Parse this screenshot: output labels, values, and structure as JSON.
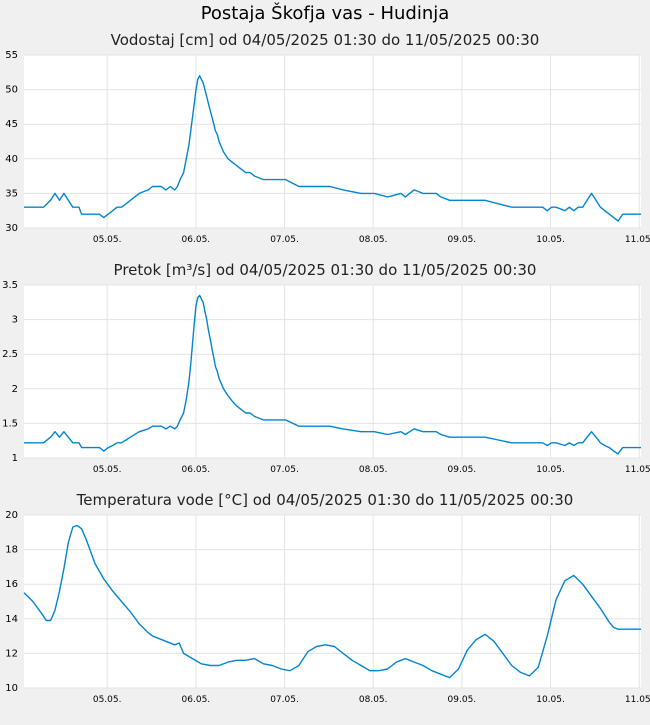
{
  "station_title": "Postaja Škofja vas - Hudinja",
  "line_color": "#0085d0",
  "chart_data": [
    {
      "type": "line",
      "title": "Vodostaj [cm] od 04/05/2025 01:30 do 11/05/2025 00:30",
      "x_range": [
        0,
        6.958
      ],
      "ylim": [
        30,
        55
      ],
      "yticks": [
        30,
        35,
        40,
        45,
        50,
        55
      ],
      "ytick_labels": [
        "30",
        "35",
        "40",
        "45",
        "50",
        "55"
      ],
      "xticks": [
        0.938,
        1.938,
        2.938,
        3.938,
        4.938,
        5.938,
        6.938
      ],
      "xtick_labels": [
        "05.05.",
        "06.05.",
        "07.05.",
        "08.05.",
        "09.05.",
        "10.05.",
        "11.05."
      ],
      "grid": true,
      "x": [
        0.0,
        0.22,
        0.3,
        0.35,
        0.4,
        0.45,
        0.5,
        0.55,
        0.62,
        0.65,
        0.7,
        0.85,
        0.9,
        0.95,
        1.0,
        1.05,
        1.1,
        1.15,
        1.2,
        1.3,
        1.4,
        1.45,
        1.5,
        1.55,
        1.6,
        1.65,
        1.7,
        1.73,
        1.76,
        1.8,
        1.83,
        1.86,
        1.88,
        1.9,
        1.92,
        1.94,
        1.96,
        1.98,
        2.0,
        2.02,
        2.04,
        2.06,
        2.08,
        2.1,
        2.12,
        2.14,
        2.16,
        2.18,
        2.2,
        2.25,
        2.3,
        2.35,
        2.4,
        2.45,
        2.5,
        2.55,
        2.6,
        2.7,
        2.8,
        2.95,
        3.1,
        3.25,
        3.45,
        3.6,
        3.8,
        3.95,
        4.1,
        4.25,
        4.3,
        4.35,
        4.4,
        4.5,
        4.6,
        4.65,
        4.7,
        4.8,
        5.0,
        5.1,
        5.2,
        5.35,
        5.5,
        5.6,
        5.7,
        5.75,
        5.8,
        5.85,
        5.9,
        5.95,
        6.0,
        6.1,
        6.15,
        6.2,
        6.25,
        6.3,
        6.35,
        6.4,
        6.45,
        6.5,
        6.55,
        6.6,
        6.65,
        6.7,
        6.75,
        6.8,
        6.85,
        6.9,
        6.958
      ],
      "y": [
        33,
        33,
        34,
        35,
        34,
        35,
        34,
        33,
        33,
        32,
        32,
        32,
        31.5,
        32,
        32.5,
        33,
        33,
        33.5,
        34,
        35,
        35.5,
        36,
        36,
        36,
        35.5,
        36,
        35.5,
        36,
        37,
        38,
        40,
        42,
        44,
        46,
        48,
        50,
        51.5,
        52,
        51.5,
        51,
        50,
        49,
        48,
        47,
        46,
        45,
        44,
        43.5,
        42.5,
        41,
        40,
        39.5,
        39,
        38.5,
        38,
        38,
        37.5,
        37,
        37,
        37,
        36,
        36,
        36,
        35.5,
        35,
        35,
        34.5,
        35,
        34.5,
        35,
        35.5,
        35,
        35,
        35,
        34.5,
        34,
        34,
        34,
        34,
        33.5,
        33,
        33,
        33,
        33,
        33,
        33,
        32.5,
        33,
        33,
        32.5,
        33,
        32.5,
        33,
        33,
        34,
        35,
        34,
        33,
        32.5,
        32,
        31.5,
        31,
        32,
        32,
        32,
        32,
        32
      ]
    },
    {
      "type": "line",
      "title": "Pretok [m³/s] od 04/05/2025 01:30 do 11/05/2025 00:30",
      "x_range": [
        0,
        6.958
      ],
      "ylim": [
        1,
        3.5
      ],
      "yticks": [
        1,
        1.5,
        2,
        2.5,
        3,
        3.5
      ],
      "ytick_labels": [
        "1",
        "1.5",
        "2",
        "2.5",
        "3",
        "3.5"
      ],
      "xticks": [
        0.938,
        1.938,
        2.938,
        3.938,
        4.938,
        5.938,
        6.938
      ],
      "xtick_labels": [
        "05.05.",
        "06.05.",
        "07.05.",
        "08.05.",
        "09.05.",
        "10.05.",
        "11.05."
      ],
      "grid": true,
      "x": [
        0.0,
        0.22,
        0.3,
        0.35,
        0.4,
        0.45,
        0.5,
        0.55,
        0.62,
        0.65,
        0.7,
        0.85,
        0.9,
        0.95,
        1.0,
        1.05,
        1.1,
        1.15,
        1.2,
        1.3,
        1.4,
        1.45,
        1.5,
        1.55,
        1.6,
        1.65,
        1.7,
        1.73,
        1.76,
        1.8,
        1.83,
        1.86,
        1.88,
        1.9,
        1.92,
        1.94,
        1.96,
        1.98,
        2.0,
        2.02,
        2.04,
        2.06,
        2.08,
        2.1,
        2.12,
        2.14,
        2.16,
        2.18,
        2.2,
        2.25,
        2.3,
        2.35,
        2.4,
        2.45,
        2.5,
        2.55,
        2.6,
        2.7,
        2.8,
        2.95,
        3.1,
        3.25,
        3.45,
        3.6,
        3.8,
        3.95,
        4.1,
        4.25,
        4.3,
        4.35,
        4.4,
        4.5,
        4.6,
        4.65,
        4.7,
        4.8,
        5.0,
        5.1,
        5.2,
        5.35,
        5.5,
        5.6,
        5.7,
        5.75,
        5.8,
        5.85,
        5.9,
        5.95,
        6.0,
        6.1,
        6.15,
        6.2,
        6.25,
        6.3,
        6.35,
        6.4,
        6.45,
        6.5,
        6.55,
        6.6,
        6.65,
        6.7,
        6.75,
        6.8,
        6.85,
        6.9,
        6.958
      ],
      "y": [
        1.22,
        1.22,
        1.3,
        1.38,
        1.3,
        1.38,
        1.3,
        1.22,
        1.22,
        1.15,
        1.15,
        1.15,
        1.1,
        1.15,
        1.18,
        1.22,
        1.22,
        1.26,
        1.3,
        1.38,
        1.42,
        1.46,
        1.46,
        1.46,
        1.42,
        1.46,
        1.42,
        1.46,
        1.55,
        1.65,
        1.85,
        2.1,
        2.35,
        2.65,
        2.95,
        3.2,
        3.32,
        3.35,
        3.3,
        3.25,
        3.12,
        3.0,
        2.85,
        2.72,
        2.58,
        2.45,
        2.32,
        2.25,
        2.15,
        2.0,
        1.9,
        1.82,
        1.75,
        1.7,
        1.65,
        1.65,
        1.6,
        1.55,
        1.55,
        1.55,
        1.46,
        1.46,
        1.46,
        1.42,
        1.38,
        1.38,
        1.34,
        1.38,
        1.34,
        1.38,
        1.42,
        1.38,
        1.38,
        1.38,
        1.34,
        1.3,
        1.3,
        1.3,
        1.3,
        1.26,
        1.22,
        1.22,
        1.22,
        1.22,
        1.22,
        1.22,
        1.18,
        1.22,
        1.22,
        1.18,
        1.22,
        1.18,
        1.22,
        1.22,
        1.3,
        1.38,
        1.3,
        1.22,
        1.18,
        1.15,
        1.1,
        1.06,
        1.15,
        1.15,
        1.15,
        1.15,
        1.15
      ]
    },
    {
      "type": "line",
      "title": "Temperatura vode [°C] od 04/05/2025 01:30 do 11/05/2025 00:30",
      "x_range": [
        0,
        6.958
      ],
      "ylim": [
        10,
        20
      ],
      "yticks": [
        10,
        12,
        14,
        16,
        18,
        20
      ],
      "ytick_labels": [
        "10",
        "12",
        "14",
        "16",
        "18",
        "20"
      ],
      "xticks": [
        0.938,
        1.938,
        2.938,
        3.938,
        4.938,
        5.938,
        6.938
      ],
      "xtick_labels": [
        "05.05.",
        "06.05.",
        "07.05.",
        "08.05.",
        "09.05.",
        "10.05.",
        "11.05."
      ],
      "grid": true,
      "x": [
        0.0,
        0.1,
        0.2,
        0.25,
        0.3,
        0.35,
        0.4,
        0.45,
        0.5,
        0.55,
        0.6,
        0.65,
        0.7,
        0.75,
        0.8,
        0.9,
        1.0,
        1.1,
        1.2,
        1.3,
        1.4,
        1.45,
        1.5,
        1.6,
        1.7,
        1.75,
        1.8,
        1.9,
        2.0,
        2.1,
        2.2,
        2.3,
        2.4,
        2.5,
        2.6,
        2.7,
        2.8,
        2.9,
        3.0,
        3.1,
        3.2,
        3.3,
        3.4,
        3.5,
        3.6,
        3.7,
        3.8,
        3.9,
        4.0,
        4.1,
        4.2,
        4.25,
        4.3,
        4.35,
        4.4,
        4.5,
        4.6,
        4.7,
        4.8,
        4.9,
        5.0,
        5.1,
        5.2,
        5.3,
        5.4,
        5.5,
        5.6,
        5.7,
        5.8,
        5.9,
        6.0,
        6.1,
        6.2,
        6.3,
        6.4,
        6.5,
        6.55,
        6.6,
        6.65,
        6.7,
        6.8,
        6.9,
        6.958
      ],
      "y": [
        15.5,
        15.0,
        14.3,
        13.9,
        13.9,
        14.5,
        15.6,
        16.9,
        18.4,
        19.3,
        19.4,
        19.2,
        18.6,
        17.9,
        17.2,
        16.3,
        15.6,
        15.0,
        14.4,
        13.7,
        13.2,
        13.0,
        12.9,
        12.7,
        12.5,
        12.6,
        12.0,
        11.7,
        11.4,
        11.3,
        11.3,
        11.5,
        11.6,
        11.6,
        11.7,
        11.4,
        11.3,
        11.1,
        11.0,
        11.3,
        12.1,
        12.4,
        12.5,
        12.4,
        12.0,
        11.6,
        11.3,
        11.0,
        11.0,
        11.1,
        11.5,
        11.6,
        11.7,
        11.6,
        11.5,
        11.3,
        11.0,
        10.8,
        10.6,
        11.1,
        12.2,
        12.8,
        13.1,
        12.7,
        12.0,
        11.3,
        10.9,
        10.7,
        11.2,
        13.0,
        15.1,
        16.2,
        16.5,
        16.0,
        15.3,
        14.6,
        14.2,
        13.8,
        13.5,
        13.4,
        13.4,
        13.4,
        13.4
      ]
    }
  ]
}
